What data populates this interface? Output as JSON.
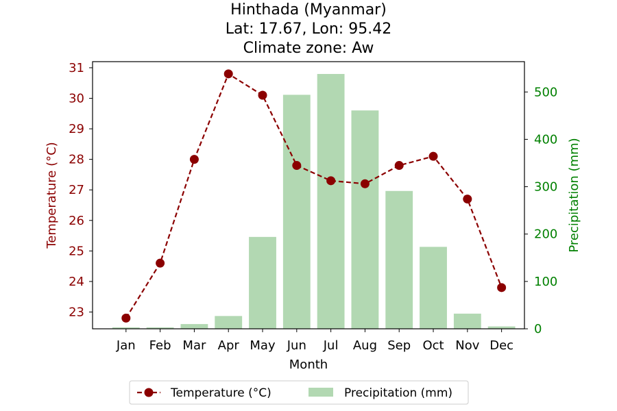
{
  "chart_data": {
    "type": "bar+line",
    "title_lines": [
      "Hinthada (Myanmar)",
      "Lat: 17.67, Lon: 95.42",
      "Climate zone: Aw"
    ],
    "xlabel": "Month",
    "categories": [
      "Jan",
      "Feb",
      "Mar",
      "Apr",
      "May",
      "Jun",
      "Jul",
      "Aug",
      "Sep",
      "Oct",
      "Nov",
      "Dec"
    ],
    "series": [
      {
        "name": "Temperature (°C)",
        "kind": "line",
        "axis": "left",
        "color": "#8b0000",
        "style": "dashed",
        "marker": "circle",
        "values": [
          22.8,
          24.6,
          28.0,
          30.8,
          30.1,
          27.8,
          27.3,
          27.2,
          27.8,
          28.1,
          26.7,
          23.8
        ]
      },
      {
        "name": "Precipitation (mm)",
        "kind": "bar",
        "axis": "right",
        "color": "#b2d8b2",
        "values": [
          3,
          3,
          10,
          27,
          194,
          494,
          538,
          461,
          291,
          173,
          32,
          5
        ]
      }
    ],
    "y_left": {
      "label": "Temperature (°C)",
      "ticks": [
        23,
        24,
        25,
        26,
        27,
        28,
        29,
        30,
        31
      ],
      "range": [
        22.45,
        31.2
      ],
      "color": "#8b0000"
    },
    "y_right": {
      "label": "Precipitation (mm)",
      "ticks": [
        0,
        100,
        200,
        300,
        400,
        500
      ],
      "range": [
        0,
        564
      ],
      "color": "#008000"
    },
    "legend": {
      "placement": "bottom-center",
      "entries": [
        "Temperature (°C)",
        "Precipitation (mm)"
      ]
    },
    "grid": false
  }
}
